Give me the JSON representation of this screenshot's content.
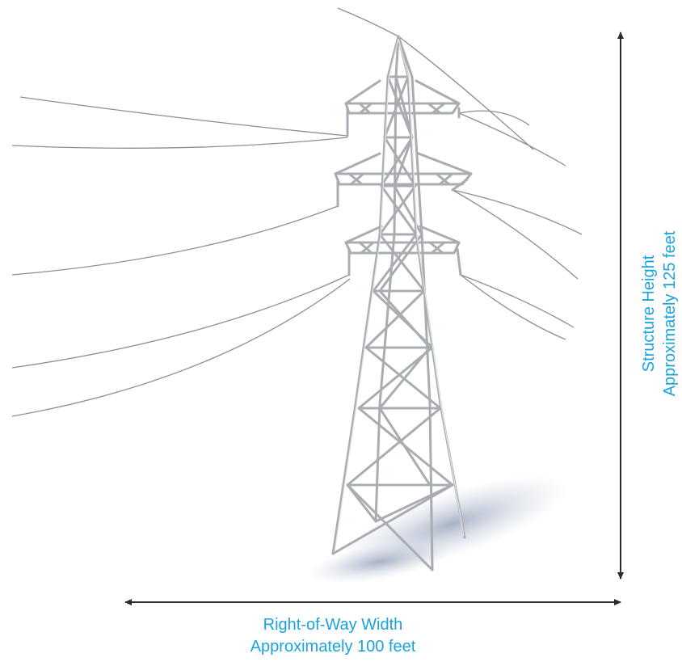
{
  "illustration": {
    "subject": "steel lattice transmission tower with conductors",
    "colors": {
      "label_text": "#1aa3dd",
      "dimension_arrows": "#2b2b2b",
      "tower_steel": "#a9adb2",
      "tower_highlight": "#e3e5e8",
      "conductor": "#8b8f93",
      "shadow": "#b9c2d3"
    }
  },
  "dimensions": {
    "width": {
      "line1": "Right-of-Way Width",
      "line2": "Approximately 100 feet"
    },
    "height": {
      "line1": "Structure Height",
      "line2": "Approximately 125 feet"
    }
  }
}
